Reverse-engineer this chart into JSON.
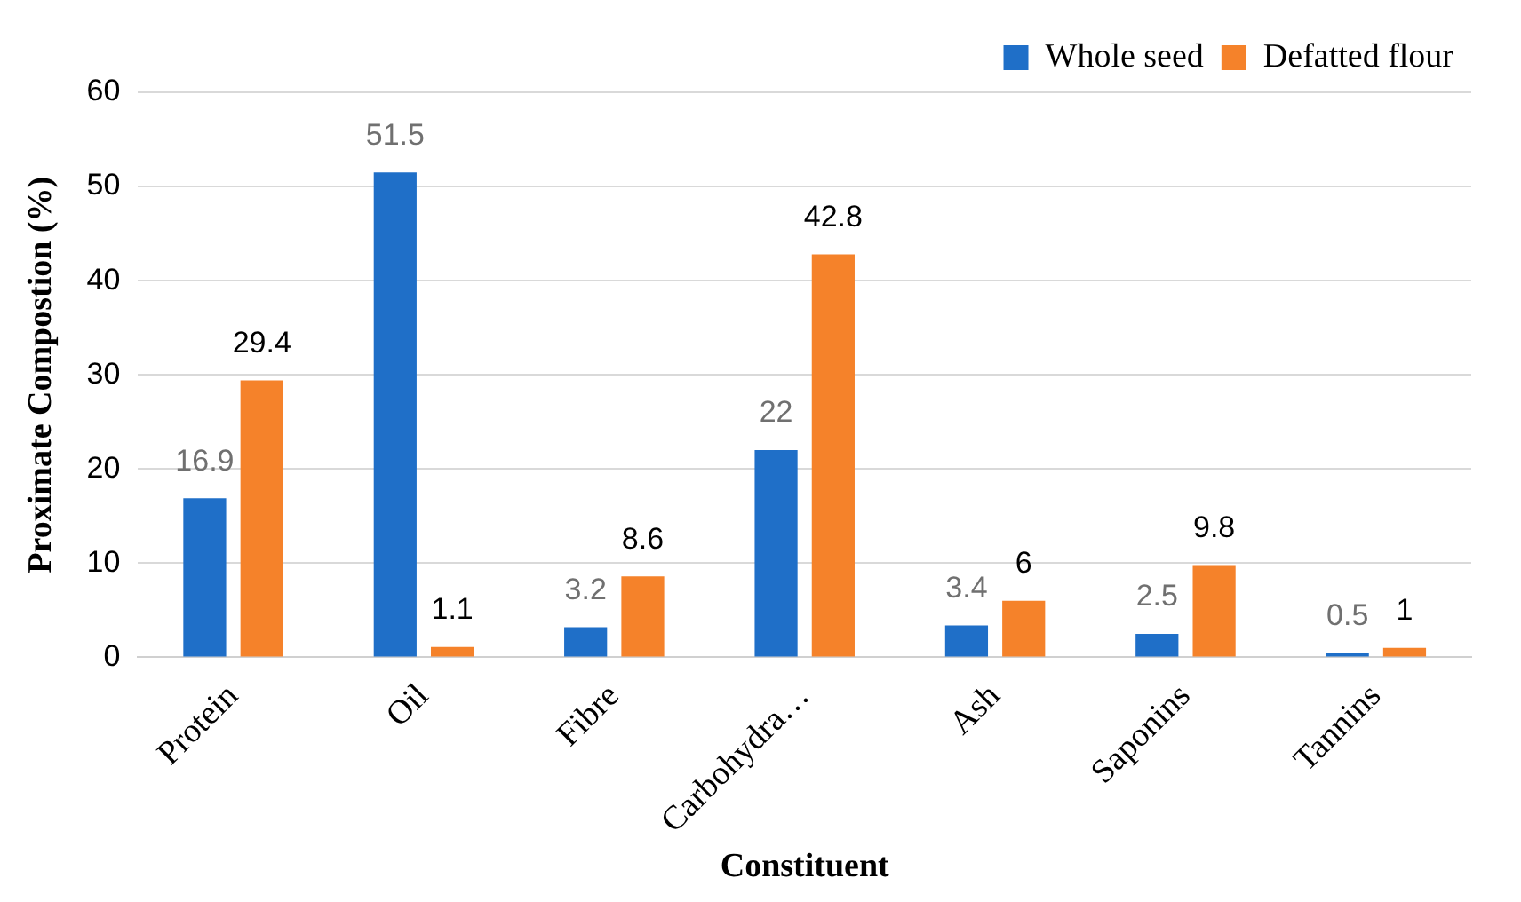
{
  "chart_data": {
    "type": "bar",
    "xlabel": "Constituent",
    "ylabel": "Proximate Compostion (%)",
    "categories": [
      "Protein",
      "Oil",
      "Fibre",
      "Carbohydra…",
      "Ash",
      "Saponins",
      "Tannins"
    ],
    "series": [
      {
        "name": "Whole seed",
        "color": "#1f6fc8",
        "values": [
          16.9,
          51.5,
          3.2,
          22,
          3.4,
          2.5,
          0.5
        ]
      },
      {
        "name": "Defatted flour",
        "color": "#f5822a",
        "values": [
          29.4,
          1.1,
          8.6,
          42.8,
          6,
          9.8,
          1
        ]
      }
    ],
    "ylim": [
      0,
      60
    ],
    "yticks": [
      0,
      10,
      20,
      30,
      40,
      50,
      60
    ],
    "grid": "y",
    "legend": "top right",
    "data_labels": true
  }
}
